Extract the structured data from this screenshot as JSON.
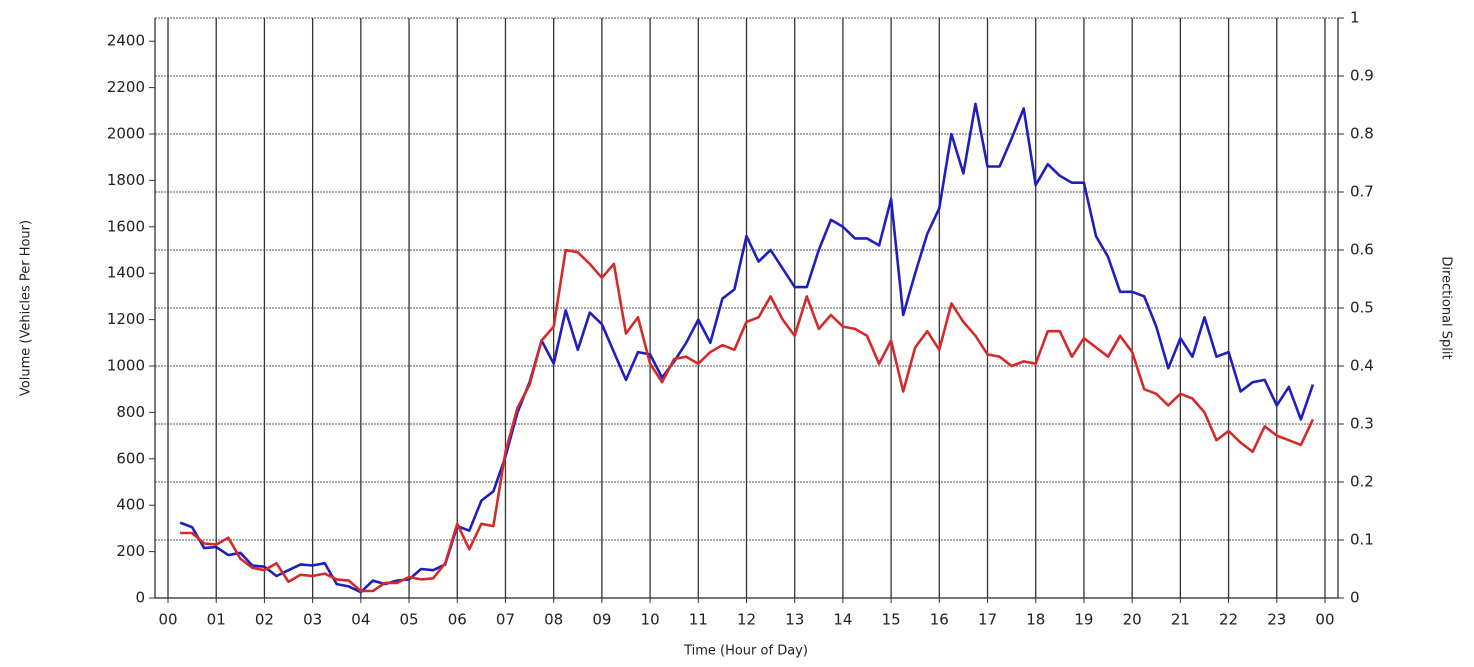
{
  "chart_data": {
    "type": "line",
    "x_label": "Time (Hour of Day)",
    "y_label": "Volume (Vehicles Per Hour)",
    "y2_label": "Directional Split",
    "xlim": [
      -0.27,
      24.27
    ],
    "xticks": [
      {
        "value": 0,
        "label": "00"
      },
      {
        "value": 1,
        "label": "01"
      },
      {
        "value": 2,
        "label": "02"
      },
      {
        "value": 3,
        "label": "03"
      },
      {
        "value": 4,
        "label": "04"
      },
      {
        "value": 5,
        "label": "05"
      },
      {
        "value": 6,
        "label": "06"
      },
      {
        "value": 7,
        "label": "07"
      },
      {
        "value": 8,
        "label": "08"
      },
      {
        "value": 9,
        "label": "09"
      },
      {
        "value": 10,
        "label": "10"
      },
      {
        "value": 11,
        "label": "11"
      },
      {
        "value": 12,
        "label": "12"
      },
      {
        "value": 13,
        "label": "13"
      },
      {
        "value": 14,
        "label": "14"
      },
      {
        "value": 15,
        "label": "15"
      },
      {
        "value": 16,
        "label": "16"
      },
      {
        "value": 17,
        "label": "17"
      },
      {
        "value": 18,
        "label": "18"
      },
      {
        "value": 19,
        "label": "19"
      },
      {
        "value": 20,
        "label": "20"
      },
      {
        "value": 21,
        "label": "21"
      },
      {
        "value": 22,
        "label": "22"
      },
      {
        "value": 23,
        "label": "23"
      },
      {
        "value": 24,
        "label": "00"
      }
    ],
    "ylim": [
      0,
      2500
    ],
    "yticks": [
      0,
      200,
      400,
      600,
      800,
      1000,
      1200,
      1400,
      1600,
      1800,
      2000,
      2200,
      2400
    ],
    "y2lim": [
      0,
      1
    ],
    "y2ticks": [
      0,
      0.1,
      0.2,
      0.3,
      0.4,
      0.5,
      0.6,
      0.7,
      0.8,
      0.9,
      1
    ],
    "grid": "y2",
    "x": [
      0.25,
      0.5,
      0.75,
      1,
      1.25,
      1.5,
      1.75,
      2,
      2.25,
      2.5,
      2.75,
      3,
      3.25,
      3.5,
      3.75,
      4,
      4.25,
      4.5,
      4.75,
      5,
      5.25,
      5.5,
      5.75,
      6,
      6.25,
      6.5,
      6.75,
      7,
      7.25,
      7.5,
      7.75,
      8,
      8.25,
      8.5,
      8.75,
      9,
      9.25,
      9.5,
      9.75,
      10,
      10.25,
      10.5,
      10.75,
      11,
      11.25,
      11.5,
      11.75,
      12,
      12.25,
      12.5,
      12.75,
      13,
      13.25,
      13.5,
      13.75,
      14,
      14.25,
      14.5,
      14.75,
      15,
      15.25,
      15.5,
      15.75,
      16,
      16.25,
      16.5,
      16.75,
      17,
      17.25,
      17.5,
      17.75,
      18,
      18.25,
      18.5,
      18.75,
      19,
      19.25,
      19.5,
      19.75,
      20,
      20.25,
      20.5,
      20.75,
      21,
      21.25,
      21.5,
      21.75,
      22,
      22.25,
      22.5,
      22.75,
      23,
      23.25,
      23.5,
      23.75
    ],
    "series": [
      {
        "color": "#1f1fbf",
        "values": [
          325,
          305,
          215,
          220,
          185,
          195,
          140,
          135,
          95,
          120,
          145,
          140,
          150,
          60,
          50,
          25,
          75,
          60,
          75,
          80,
          125,
          120,
          145,
          310,
          290,
          420,
          460,
          610,
          800,
          930,
          1110,
          1010,
          1240,
          1070,
          1230,
          1180,
          1060,
          940,
          1060,
          1050,
          950,
          1020,
          1100,
          1200,
          1100,
          1290,
          1330,
          1560,
          1450,
          1500,
          1420,
          1340,
          1340,
          1500,
          1630,
          1600,
          1550,
          1550,
          1520,
          1720,
          1220,
          1400,
          1570,
          1680,
          2000,
          1830,
          2130,
          1860,
          1860,
          1980,
          2110,
          1780,
          1870,
          1820,
          1790,
          1790,
          1560,
          1470,
          1320,
          1320,
          1300,
          1170,
          990,
          1120,
          1040,
          1210,
          1040,
          1060,
          890,
          930,
          940,
          830,
          910,
          770,
          920
        ]
      },
      {
        "color": "#d42a2a",
        "values": [
          280,
          280,
          235,
          230,
          260,
          170,
          130,
          120,
          150,
          70,
          100,
          95,
          105,
          80,
          75,
          30,
          30,
          65,
          65,
          90,
          80,
          85,
          150,
          320,
          210,
          320,
          310,
          630,
          820,
          920,
          1110,
          1170,
          1500,
          1490,
          1440,
          1380,
          1440,
          1140,
          1210,
          1010,
          930,
          1030,
          1040,
          1010,
          1060,
          1090,
          1070,
          1190,
          1210,
          1300,
          1200,
          1130,
          1300,
          1160,
          1220,
          1170,
          1160,
          1130,
          1010,
          1110,
          890,
          1080,
          1150,
          1070,
          1270,
          1190,
          1130,
          1050,
          1040,
          1000,
          1020,
          1010,
          1150,
          1150,
          1040,
          1120,
          1080,
          1040,
          1130,
          1060,
          900,
          880,
          830,
          880,
          860,
          800,
          680,
          720,
          670,
          630,
          740,
          700,
          680,
          660,
          770
        ]
      }
    ]
  }
}
